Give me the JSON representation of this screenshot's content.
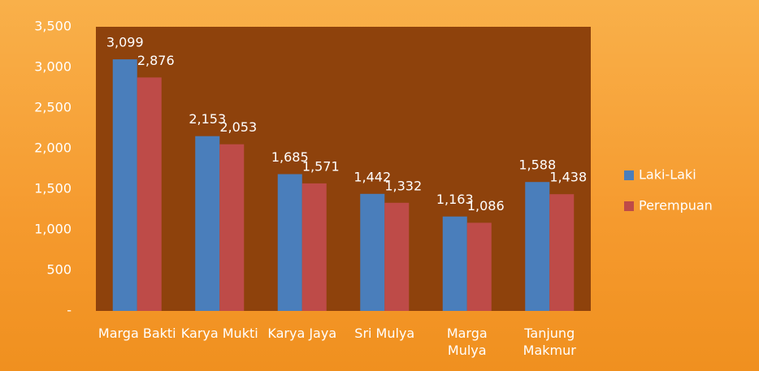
{
  "chart_data": {
    "type": "bar",
    "categories": [
      "Marga Bakti",
      "Karya Mukti",
      "Karya Jaya",
      "Sri Mulya",
      "Marga Mulya",
      "Tanjung Makmur"
    ],
    "series": [
      {
        "name": "Laki-Laki",
        "color": "#4a7ebb",
        "values": [
          3099,
          2153,
          1685,
          1442,
          1163,
          1588
        ],
        "value_labels": [
          "3,099",
          "2,153",
          "1,685",
          "1,442",
          "1,163",
          "1,588"
        ]
      },
      {
        "name": "Perempuan",
        "color": "#be4b48",
        "values": [
          2876,
          2053,
          1571,
          1332,
          1086,
          1438
        ],
        "value_labels": [
          "2,876",
          "2,053",
          "1,571",
          "1,332",
          "1,086",
          "1,438"
        ]
      }
    ],
    "ylim": [
      0,
      3500
    ],
    "yticks": [
      {
        "value": 0,
        "label": "-"
      },
      500,
      {
        "value": 1000,
        "label": "1,000"
      },
      {
        "value": 1500,
        "label": "1,500"
      },
      {
        "value": 2000,
        "label": "2,000"
      },
      {
        "value": 2500,
        "label": "2,500"
      },
      {
        "value": 3000,
        "label": "3,000"
      },
      {
        "value": 3500,
        "label": "3,500"
      }
    ],
    "legend": "right"
  }
}
